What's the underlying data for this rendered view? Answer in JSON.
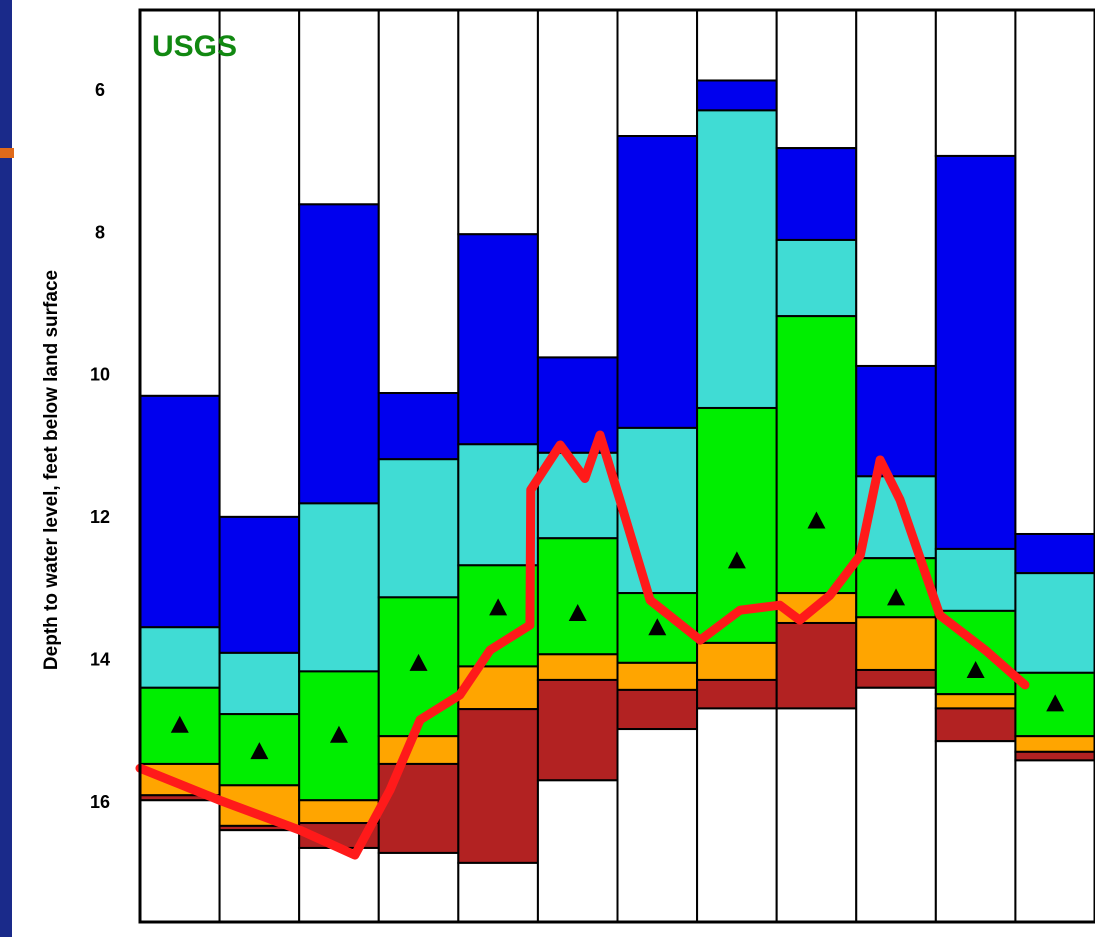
{
  "chart_data": {
    "type": "percentile_bars",
    "y_label": "Depth to water level, feet below land surface",
    "annotation": "USGS",
    "annotation_color": "#118811",
    "categories": [
      null,
      null,
      null,
      null,
      null,
      null,
      null,
      null,
      null,
      null,
      null,
      null
    ],
    "ylim": [
      17.67,
      4.86
    ],
    "yticks": [
      6,
      8,
      10,
      12,
      14,
      16
    ],
    "series": [
      {
        "color": "#0000ee",
        "values": [
          10.28,
          11.98,
          7.59,
          10.24,
          8.01,
          9.74,
          6.63,
          5.85,
          6.8,
          9.86,
          6.91,
          12.22
        ]
      },
      {
        "color": "#40dcd4",
        "values": [
          13.53,
          13.89,
          11.79,
          11.17,
          10.96,
          11.08,
          10.73,
          6.27,
          8.09,
          11.41,
          12.43,
          12.77
        ]
      },
      {
        "color": "#00ee00",
        "values": [
          14.38,
          14.75,
          14.15,
          13.11,
          12.66,
          12.28,
          13.05,
          10.45,
          9.16,
          12.56,
          13.3,
          14.17
        ]
      },
      {
        "color": "#ffa500",
        "values": [
          15.45,
          15.75,
          15.96,
          15.06,
          14.08,
          13.91,
          14.03,
          13.75,
          13.05,
          13.39,
          14.47,
          15.06
        ]
      },
      {
        "color": "#b22222",
        "values": [
          15.89,
          16.32,
          16.28,
          15.45,
          14.68,
          14.27,
          14.41,
          14.27,
          13.47,
          14.13,
          14.67,
          15.28
        ]
      },
      {
        "color": "#ffffff",
        "values": [
          15.96,
          16.38,
          16.63,
          16.7,
          16.84,
          15.68,
          14.96,
          14.67,
          14.67,
          14.38,
          15.13,
          15.4
        ]
      }
    ],
    "median": {
      "color": "#000000",
      "values": [
        14.9,
        15.27,
        15.04,
        14.03,
        13.25,
        13.33,
        13.53,
        12.59,
        12.03,
        13.11,
        14.13,
        14.6
      ]
    },
    "line": {
      "color": "#ff1a1a",
      "xlim": [
        0,
        12
      ],
      "x": [
        0,
        1.0,
        2.01,
        2.7,
        3.14,
        3.52,
        4.02,
        4.4,
        4.9,
        4.91,
        5.28,
        5.59,
        5.78,
        6.03,
        6.41,
        7.04,
        7.54,
        8.04,
        8.29,
        8.67,
        9.05,
        9.3,
        9.55,
        10.05,
        10.62,
        11.12
      ],
      "values": [
        15.51,
        15.96,
        16.38,
        16.73,
        15.82,
        14.83,
        14.48,
        13.85,
        13.5,
        11.6,
        10.97,
        11.44,
        10.83,
        11.74,
        13.15,
        13.71,
        13.29,
        13.22,
        13.43,
        13.08,
        12.52,
        11.18,
        11.74,
        13.36,
        13.85,
        14.34
      ]
    }
  }
}
